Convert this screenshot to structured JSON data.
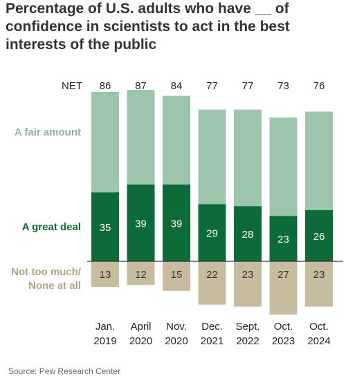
{
  "title": "Percentage of U.S. adults who have __ of confidence in scientists to act in the best interests of the public",
  "source": "Source: Pew Research Center",
  "colors": {
    "fair_amount": "#9cc5ac",
    "great_deal": "#0d6b3a",
    "not_too_much": "#c7bc9e",
    "fair_label": "#86b89a",
    "great_label": "#0d6b3a",
    "not_label": "#b0a483",
    "axis": "#333333"
  },
  "chart_data": {
    "type": "bar",
    "stacked": "diverging",
    "categories": [
      [
        "Jan.",
        "2019"
      ],
      [
        "April",
        "2020"
      ],
      [
        "Nov.",
        "2020"
      ],
      [
        "Dec.",
        "2021"
      ],
      [
        "Sept.",
        "2022"
      ],
      [
        "Oct.",
        "2023"
      ],
      [
        "Oct.",
        "2024"
      ]
    ],
    "net_label": "NET",
    "net": [
      86,
      87,
      84,
      77,
      77,
      73,
      76
    ],
    "series": [
      {
        "name": "A great deal",
        "values": [
          35,
          39,
          39,
          29,
          28,
          23,
          26
        ]
      },
      {
        "name": "A fair amount",
        "values": [
          51,
          48,
          45,
          48,
          49,
          50,
          50
        ]
      },
      {
        "name": "Not too much/ None at all",
        "values": [
          13,
          12,
          15,
          22,
          23,
          27,
          23
        ]
      }
    ],
    "legend_labels": {
      "fair_amount": "A fair amount",
      "great_deal": "A great deal",
      "not_too_much_line1": "Not too much/",
      "not_too_much_line2": "None at all"
    }
  }
}
